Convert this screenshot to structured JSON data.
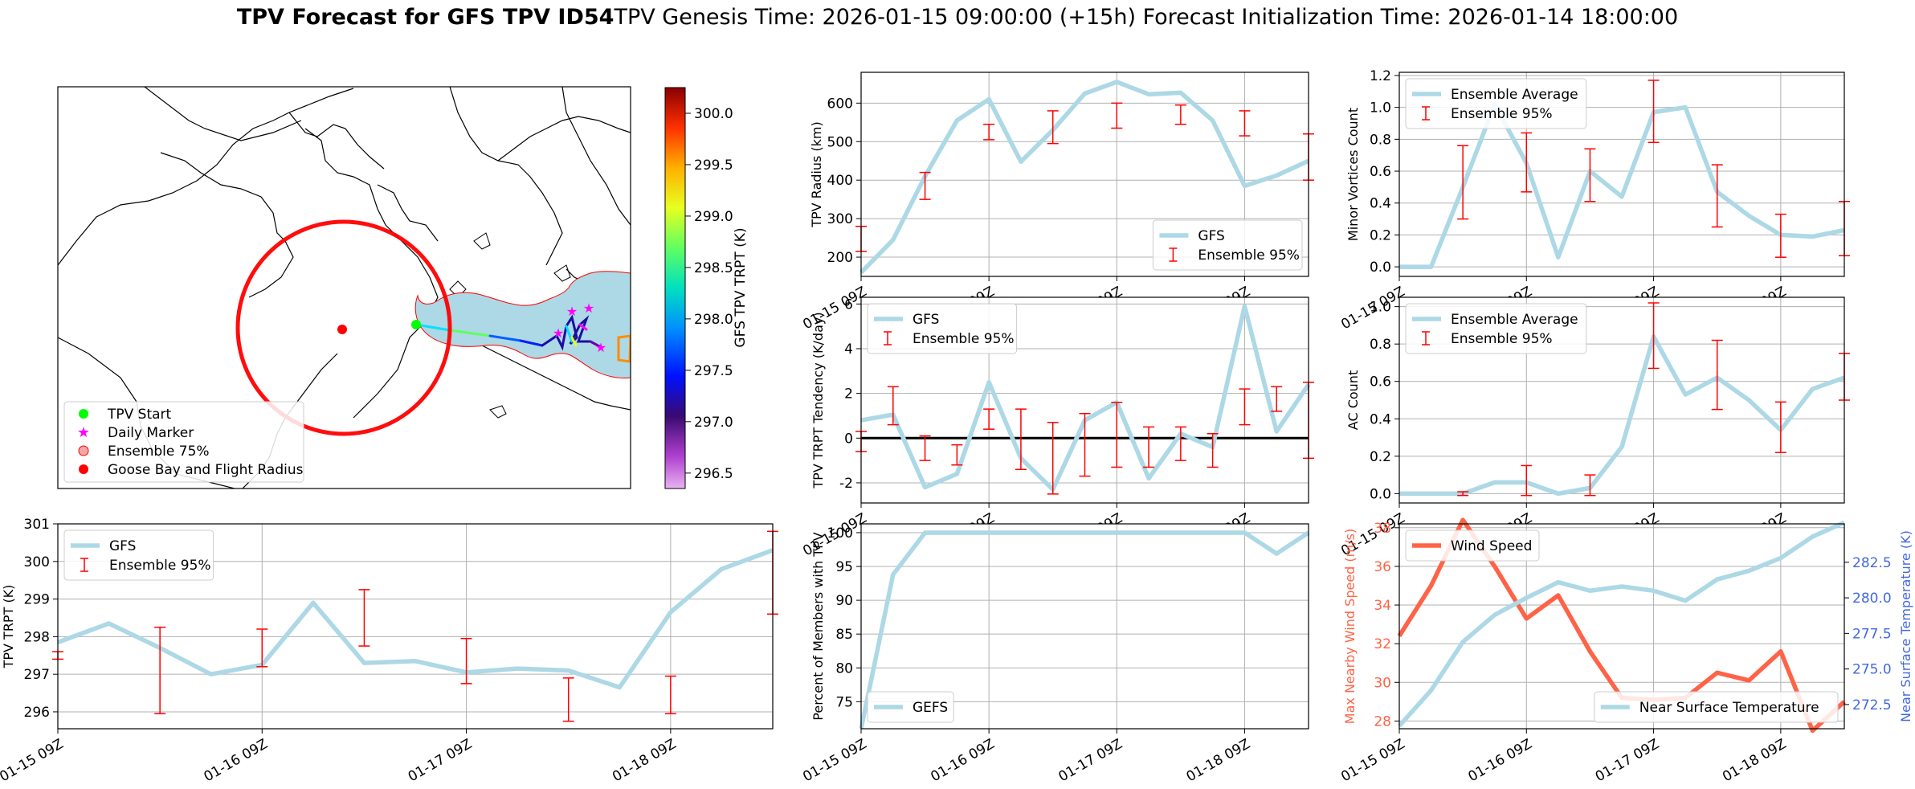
{
  "title": {
    "bold": "TPV Forecast for GFS TPV ID54",
    "rest": "TPV Genesis Time: 2026-01-15 09:00:00 (+15h)   Forecast Initialization Time: 2026-01-14 18:00:00"
  },
  "colors": {
    "gfs": "#add8e6",
    "ensemble": "#ff0000",
    "wind": "#ff6347",
    "temp_axis": "#4169e1",
    "map_swath": "#add8e6",
    "start": "#00ff00",
    "marker": "#ff00ff",
    "goose": "#ff0000"
  },
  "map": {
    "legend": [
      "TPV Start",
      "Daily Marker",
      "Ensemble 75%",
      "Goose Bay and Flight Radius"
    ],
    "colorbar": {
      "label": "GFS TPV TRPT (K)",
      "ticks": [
        "300.0",
        "299.5",
        "299.0",
        "298.5",
        "298.0",
        "297.5",
        "297.0",
        "296.5"
      ]
    }
  },
  "chart_data": [
    {
      "id": "radius",
      "type": "line",
      "x_ticks": [
        "01-15 09Z",
        "01-16 09Z",
        "01-17 09Z",
        "01-18 09Z"
      ],
      "ylabel": "TPV Radius (km)",
      "ylim": [
        150,
        680
      ],
      "y_ticks": [
        200,
        300,
        400,
        500,
        600
      ],
      "legend": [
        "GFS",
        "Ensemble 95%"
      ],
      "legend_loc": "lower right",
      "series_values": [
        160,
        245,
        410,
        555,
        610,
        448,
        530,
        625,
        655,
        623,
        627,
        555,
        385,
        412,
        450
      ],
      "error_bars": [
        [
          0,
          215,
          280
        ],
        [
          2,
          350,
          420
        ],
        [
          4,
          505,
          545
        ],
        [
          6,
          495,
          580
        ],
        [
          8,
          535,
          600
        ],
        [
          10,
          545,
          595
        ],
        [
          12,
          515,
          580
        ],
        [
          14,
          400,
          520
        ]
      ]
    },
    {
      "id": "vortices",
      "type": "line",
      "x_ticks": [
        "01-15 09Z",
        "01-16 09Z",
        "01-17 09Z",
        "01-18 09Z"
      ],
      "ylabel": "Minor Vortices Count",
      "ylim": [
        -0.06,
        1.22
      ],
      "y_ticks": [
        "0.0",
        "0.2",
        "0.4",
        "0.6",
        "0.8",
        "1.0",
        "1.2"
      ],
      "legend": [
        "Ensemble Average",
        "Ensemble 95%"
      ],
      "legend_loc": "upper left",
      "series_values": [
        0,
        0,
        0.5,
        1.02,
        0.65,
        0.06,
        0.6,
        0.44,
        0.97,
        1.0,
        0.47,
        0.32,
        0.2,
        0.19,
        0.23
      ],
      "error_bars": [
        [
          2,
          0.3,
          0.76
        ],
        [
          4,
          0.47,
          0.84
        ],
        [
          6,
          0.41,
          0.74
        ],
        [
          8,
          0.78,
          1.17
        ],
        [
          10,
          0.25,
          0.64
        ],
        [
          12,
          0.06,
          0.33
        ],
        [
          14,
          0.07,
          0.41
        ]
      ]
    },
    {
      "id": "tendency",
      "type": "line",
      "x_ticks": [
        "01-15 09Z",
        "01-16 09Z",
        "01-17 09Z",
        "01-18 09Z"
      ],
      "ylabel": "TPV TRPT Tendency (K/day)",
      "ylim": [
        -2.9,
        6.3
      ],
      "y_ticks": [
        -2,
        0,
        2,
        4,
        6
      ],
      "legend": [
        "GFS",
        "Ensemble 95%"
      ],
      "legend_loc": "upper left",
      "series_values": [
        0.8,
        1.05,
        -2.2,
        -1.6,
        2.5,
        -0.9,
        -2.3,
        0.8,
        1.6,
        -1.8,
        0.2,
        -0.4,
        5.9,
        0.3,
        2.4
      ],
      "error_bars": [
        [
          0,
          -0.6,
          0.3
        ],
        [
          1,
          0.6,
          2.3
        ],
        [
          2,
          -1.0,
          0.1
        ],
        [
          3,
          -1.2,
          -0.3
        ],
        [
          4,
          0.4,
          1.3
        ],
        [
          5,
          -1.4,
          1.3
        ],
        [
          6,
          -2.5,
          0.7
        ],
        [
          7,
          -1.7,
          1.1
        ],
        [
          8,
          -1.3,
          1.6
        ],
        [
          9,
          -1.3,
          0.5
        ],
        [
          10,
          -1.0,
          0.5
        ],
        [
          11,
          -1.3,
          0.2
        ],
        [
          12,
          0.6,
          2.2
        ],
        [
          13,
          1.2,
          2.3
        ],
        [
          14,
          -0.9,
          2.5
        ]
      ]
    },
    {
      "id": "ac_count",
      "type": "line",
      "x_ticks": [
        "01-15 09Z",
        "01-16 09Z",
        "01-17 09Z",
        "01-18 09Z"
      ],
      "ylabel": "AC Count",
      "ylim": [
        -0.05,
        1.05
      ],
      "y_ticks": [
        "0.0",
        "0.2",
        "0.4",
        "0.6",
        "0.8",
        "1.0"
      ],
      "legend": [
        "Ensemble Average",
        "Ensemble 95%"
      ],
      "legend_loc": "upper left",
      "series_values": [
        0,
        0,
        0,
        0.06,
        0.06,
        0,
        0.03,
        0.25,
        0.84,
        0.53,
        0.62,
        0.5,
        0.34,
        0.56,
        0.62
      ],
      "error_bars": [
        [
          2,
          -0.01,
          0.01
        ],
        [
          4,
          -0.01,
          0.15
        ],
        [
          6,
          -0.01,
          0.1
        ],
        [
          8,
          0.67,
          1.02
        ],
        [
          10,
          0.45,
          0.82
        ],
        [
          12,
          0.22,
          0.49
        ],
        [
          14,
          0.5,
          0.75
        ]
      ]
    },
    {
      "id": "trpt",
      "type": "line",
      "x_ticks": [
        "01-15 09Z",
        "01-16 09Z",
        "01-17 09Z",
        "01-18 09Z"
      ],
      "ylabel": "TPV TRPT (K)",
      "ylim": [
        295.55,
        301.0
      ],
      "y_ticks": [
        296,
        297,
        298,
        299,
        300,
        301
      ],
      "legend": [
        "GFS",
        "Ensemble 95%"
      ],
      "legend_loc": "upper left",
      "series_values": [
        297.85,
        298.35,
        297.7,
        297.0,
        297.25,
        298.9,
        297.3,
        297.35,
        297.05,
        297.15,
        297.1,
        296.65,
        298.65,
        299.8,
        300.3
      ],
      "error_bars": [
        [
          0,
          297.4,
          297.6
        ],
        [
          2,
          295.95,
          298.25
        ],
        [
          4,
          297.2,
          298.2
        ],
        [
          6,
          297.75,
          299.25
        ],
        [
          8,
          296.75,
          297.95
        ],
        [
          10,
          295.75,
          296.9
        ],
        [
          12,
          295.95,
          296.95
        ],
        [
          14,
          298.6,
          300.8
        ]
      ]
    },
    {
      "id": "percent",
      "type": "line",
      "x_ticks": [
        "01-15 09Z",
        "01-16 09Z",
        "01-17 09Z",
        "01-18 09Z"
      ],
      "ylabel": "Percent of Members with TPV",
      "ylim": [
        71,
        101.3
      ],
      "y_ticks": [
        75,
        80,
        85,
        90,
        95,
        100
      ],
      "legend": [
        "GEFS"
      ],
      "legend_loc": "lower left",
      "series_values": [
        71,
        93.8,
        100,
        100,
        100,
        100,
        100,
        100,
        100,
        100,
        100,
        100,
        100,
        96.9,
        100
      ]
    },
    {
      "id": "wind_temp",
      "type": "line",
      "x_ticks": [
        "01-15 09Z",
        "01-16 09Z",
        "01-17 09Z",
        "01-18 09Z"
      ],
      "ylabel": "Max Nearby Wind Speed (m/s)",
      "ylim": [
        27.6,
        38.2
      ],
      "y_ticks": [
        28,
        30,
        32,
        34,
        36,
        38
      ],
      "ylabel2": "Near Surface Temperature (K)",
      "ylim2": [
        270.8,
        285.2
      ],
      "y_ticks2": [
        "272.5",
        "275.0",
        "277.5",
        "280.0",
        "282.5"
      ],
      "legend": [
        "Wind Speed"
      ],
      "legend_loc": "upper left",
      "legend2": [
        "Near Surface Temperature"
      ],
      "legend2_loc": "lower right",
      "series": [
        {
          "name": "Wind Speed",
          "values": [
            32.4,
            35.0,
            38.4,
            36.0,
            33.3,
            34.5,
            31.6,
            29.2,
            29.1,
            29.2,
            30.5,
            30.1,
            31.6,
            27.5,
            29.0
          ]
        },
        {
          "name": "Near Surface Temperature",
          "values": [
            271.0,
            273.5,
            276.9,
            278.8,
            280.0,
            281.1,
            280.5,
            280.8,
            280.5,
            279.8,
            281.3,
            281.9,
            282.8,
            284.3,
            285.3
          ]
        }
      ]
    }
  ]
}
